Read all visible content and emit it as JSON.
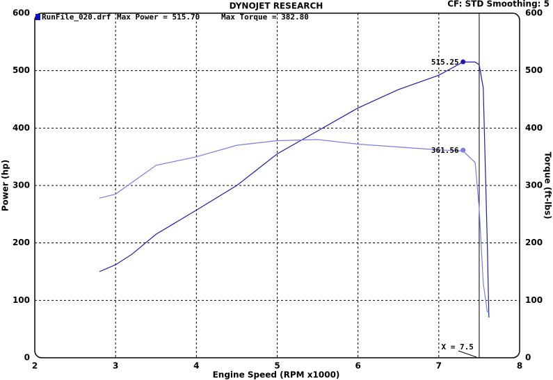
{
  "chart_data": {
    "type": "line",
    "title": "DYNOJET RESEARCH",
    "settings_text": "CF: STD  Smoothing: 5",
    "legend": {
      "run": "RunFile_020.drf",
      "max_power": "Max Power = 515.70",
      "max_torque": "Max Torque = 382.80",
      "color": "#1010c0"
    },
    "xlabel": "Engine Speed (RPM x1000)",
    "ylabel": "Power (hp)",
    "y2label": "Torque (ft-lbs)",
    "xlim": [
      2,
      8
    ],
    "xticks": [
      2,
      3,
      4,
      5,
      6,
      7,
      8
    ],
    "ylim": [
      0,
      600
    ],
    "yticks": [
      0,
      100,
      200,
      300,
      400,
      500,
      600
    ],
    "y2lim": [
      0,
      600
    ],
    "y2ticks": [
      0,
      100,
      200,
      300,
      400,
      500,
      600
    ],
    "grid": true,
    "x": [
      2.8,
      3.0,
      3.2,
      3.5,
      4.0,
      4.5,
      5.0,
      5.5,
      6.0,
      6.5,
      7.0,
      7.3,
      7.45,
      7.5,
      7.55,
      7.6,
      7.62
    ],
    "series": [
      {
        "color": "#1a1ab0",
        "values": [
          150,
          162,
          180,
          215,
          257,
          300,
          355,
          395,
          435,
          467,
          492,
          515,
          515,
          510,
          470,
          200,
          70
        ]
      },
      {
        "color": "#7a7ae8",
        "axis": "y2",
        "values": [
          278,
          285,
          305,
          335,
          350,
          370,
          378,
          380,
          372,
          367,
          362,
          360,
          340,
          260,
          130,
          80,
          80
        ]
      }
    ],
    "markers": [
      {
        "x": 7.3,
        "y": 515.25,
        "color": "#1a1ab0"
      },
      {
        "x": 7.3,
        "y": 361.56,
        "color": "#7a7ae8"
      }
    ],
    "cursor": {
      "value": 7.5,
      "label": "X = 7.5"
    }
  }
}
